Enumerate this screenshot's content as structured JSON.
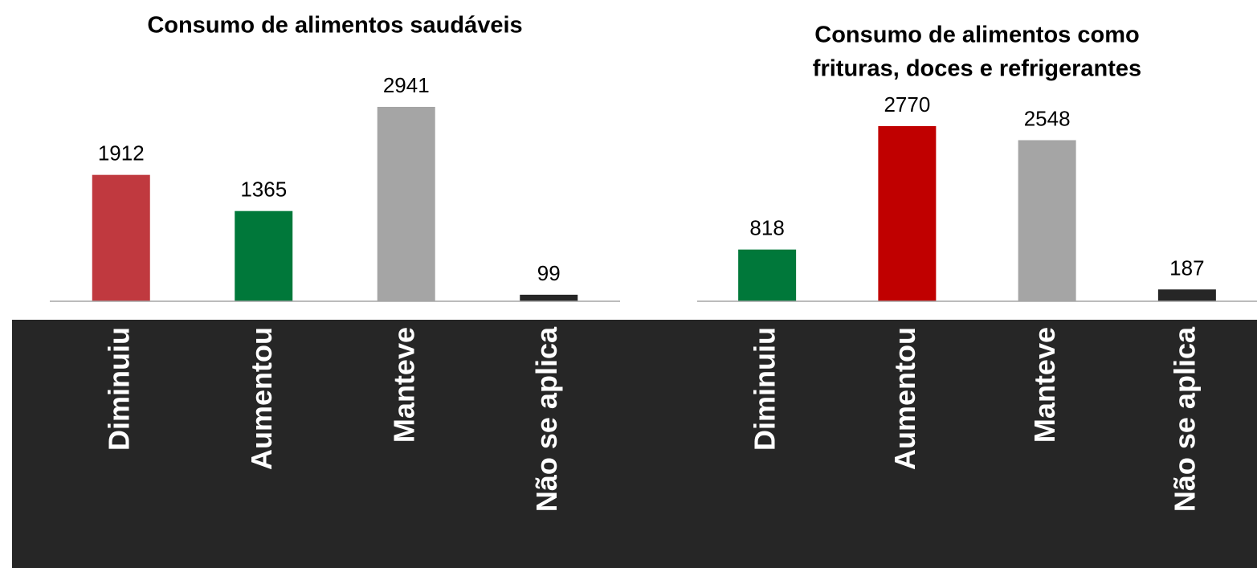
{
  "chart_data": [
    {
      "type": "bar",
      "title": [
        "Consumo de alimentos saudáveis"
      ],
      "categories": [
        "Diminuiu",
        "Aumentou",
        "Manteve",
        "Não se aplica"
      ],
      "values": [
        1912,
        1365,
        2941,
        99
      ],
      "colors": [
        "#c0393f",
        "#00783a",
        "#a5a5a5",
        "#262626"
      ]
    },
    {
      "type": "bar",
      "title": [
        "Consumo de alimentos como",
        "frituras, doces e refrigerantes"
      ],
      "categories": [
        "Diminuiu",
        "Aumentou",
        "Manteve",
        "Não se aplica"
      ],
      "values": [
        818,
        2770,
        2548,
        187
      ],
      "colors": [
        "#00783a",
        "#c00000",
        "#a5a5a5",
        "#262626"
      ]
    }
  ]
}
